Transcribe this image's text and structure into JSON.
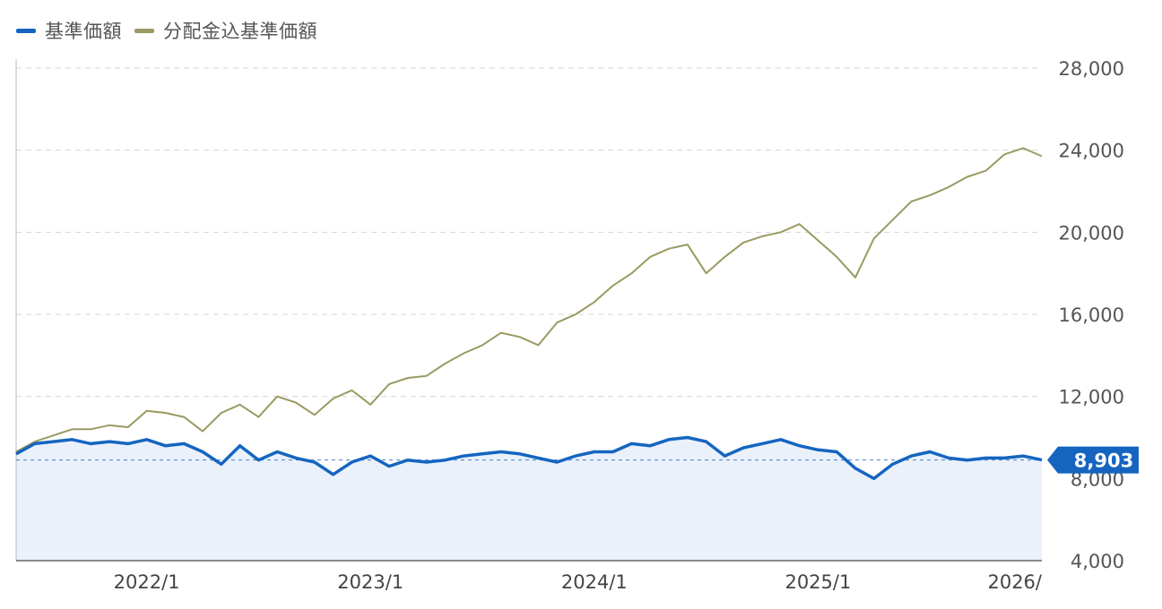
{
  "legend": {
    "items": [
      {
        "label": "基準価額",
        "color": "#1565c0"
      },
      {
        "label": "分配金込基準価額",
        "color": "#9a9a63"
      }
    ]
  },
  "current_value_label": "8,903",
  "chart_data": {
    "type": "line",
    "title": "",
    "xlabel": "",
    "ylabel": "",
    "x_range": [
      "2021-06",
      "2026-01"
    ],
    "x_tick_labels": [
      "2022/1",
      "2023/1",
      "2024/1",
      "2025/1",
      "2026/"
    ],
    "ylim": [
      4000,
      28000
    ],
    "y_ticks": [
      4000,
      8000,
      12000,
      16000,
      20000,
      24000,
      28000
    ],
    "y_tick_labels": [
      "4,000",
      "8,000",
      "12,000",
      "16,000",
      "20,000",
      "24,000",
      "28,000"
    ],
    "grid": true,
    "legend_position": "top-left",
    "series": [
      {
        "name": "基準価額",
        "color": "#1565c0",
        "fill": "area",
        "x": [
          "2021-06",
          "2021-07",
          "2021-08",
          "2021-09",
          "2021-10",
          "2021-11",
          "2021-12",
          "2022-01",
          "2022-02",
          "2022-03",
          "2022-04",
          "2022-05",
          "2022-06",
          "2022-07",
          "2022-08",
          "2022-09",
          "2022-10",
          "2022-11",
          "2022-12",
          "2023-01",
          "2023-02",
          "2023-03",
          "2023-04",
          "2023-05",
          "2023-06",
          "2023-07",
          "2023-08",
          "2023-09",
          "2023-10",
          "2023-11",
          "2023-12",
          "2024-01",
          "2024-02",
          "2024-03",
          "2024-04",
          "2024-05",
          "2024-06",
          "2024-07",
          "2024-08",
          "2024-09",
          "2024-10",
          "2024-11",
          "2024-12",
          "2025-01",
          "2025-02",
          "2025-03",
          "2025-04",
          "2025-05",
          "2025-06",
          "2025-07",
          "2025-08",
          "2025-09",
          "2025-10",
          "2025-11",
          "2025-12",
          "2026-01"
        ],
        "values": [
          9200,
          9700,
          9800,
          9900,
          9700,
          9800,
          9700,
          9900,
          9600,
          9700,
          9300,
          8700,
          9600,
          8900,
          9300,
          9000,
          8800,
          8200,
          8800,
          9100,
          8600,
          8900,
          8800,
          8900,
          9100,
          9200,
          9300,
          9200,
          9000,
          8800,
          9100,
          9300,
          9300,
          9700,
          9600,
          9900,
          10000,
          9800,
          9100,
          9500,
          9700,
          9900,
          9600,
          9400,
          9300,
          8500,
          8000,
          8700,
          9100,
          9300,
          9000,
          8900,
          9000,
          9000,
          9100,
          8903
        ]
      },
      {
        "name": "分配金込基準価額",
        "color": "#9a9a63",
        "fill": "none",
        "x": [
          "2021-06",
          "2021-07",
          "2021-08",
          "2021-09",
          "2021-10",
          "2021-11",
          "2021-12",
          "2022-01",
          "2022-02",
          "2022-03",
          "2022-04",
          "2022-05",
          "2022-06",
          "2022-07",
          "2022-08",
          "2022-09",
          "2022-10",
          "2022-11",
          "2022-12",
          "2023-01",
          "2023-02",
          "2023-03",
          "2023-04",
          "2023-05",
          "2023-06",
          "2023-07",
          "2023-08",
          "2023-09",
          "2023-10",
          "2023-11",
          "2023-12",
          "2024-01",
          "2024-02",
          "2024-03",
          "2024-04",
          "2024-05",
          "2024-06",
          "2024-07",
          "2024-08",
          "2024-09",
          "2024-10",
          "2024-11",
          "2024-12",
          "2025-01",
          "2025-02",
          "2025-03",
          "2025-04",
          "2025-05",
          "2025-06",
          "2025-07",
          "2025-08",
          "2025-09",
          "2025-10",
          "2025-11",
          "2025-12",
          "2026-01"
        ],
        "values": [
          9300,
          9800,
          10100,
          10400,
          10400,
          10600,
          10500,
          11300,
          11200,
          11000,
          10300,
          11200,
          11600,
          11000,
          12000,
          11700,
          11100,
          11900,
          12300,
          11600,
          12600,
          12900,
          13000,
          13600,
          14100,
          14500,
          15100,
          14900,
          14500,
          15600,
          16000,
          16600,
          17400,
          18000,
          18800,
          19200,
          19400,
          18000,
          18800,
          19500,
          19800,
          20000,
          20400,
          19600,
          18800,
          17800,
          19700,
          20600,
          21500,
          21800,
          22200,
          22700,
          23000,
          23800,
          24100,
          23700
        ]
      }
    ]
  }
}
